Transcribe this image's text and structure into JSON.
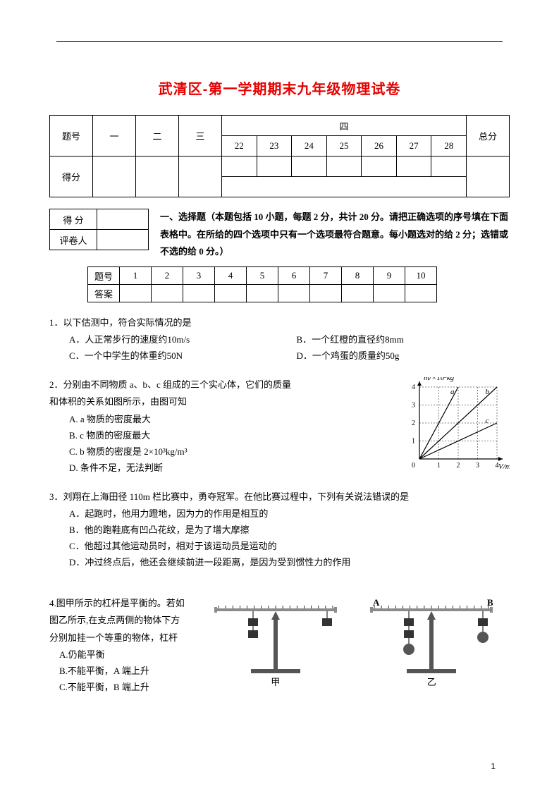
{
  "title": "武清区-第一学期期末九年级物理试卷",
  "page_number": "1",
  "score_table": {
    "row1_label": "题号",
    "row1_cells": [
      "一",
      "二",
      "三",
      "四",
      "总分"
    ],
    "row2_label": "得分",
    "sub_cells": [
      "22",
      "23",
      "24",
      "25",
      "26",
      "27",
      "28"
    ]
  },
  "mini_table": {
    "r1": "得 分",
    "r2": "评卷人"
  },
  "section1_text": "一、选择题（本题包括 10 小题，每题 2 分，共计 20 分。请把正确选项的序号填在下面表格中。在所给的四个选项中只有一个选项最符合题意。每小题选对的给 2 分；选错或不选的给 0 分。）",
  "answer_table": {
    "label_q": "题号",
    "label_a": "答案",
    "nums": [
      "1",
      "2",
      "3",
      "4",
      "5",
      "6",
      "7",
      "8",
      "9",
      "10"
    ]
  },
  "q1": {
    "stem": "1．以下估测中，符合实际情况的是",
    "A": "A．人正常步行的速度约10m/s",
    "B": "B．一个红橙的直径约8mm",
    "C": "C．一个中学生的体重约50N",
    "D": "D．一个鸡蛋的质量约50g"
  },
  "q2": {
    "stem1": "2．分别由不同物质 a、b、c 组成的三个实心体，它们的质量",
    "stem2": "和体积的关系如图所示，由图可知",
    "A": "A. a 物质的密度最大",
    "B": "B. c 物质的密度最大",
    "C": "C. b 物质的密度是 2×10³kg/m³",
    "D": "D. 条件不足，无法判断",
    "chart": {
      "type": "line",
      "xlabel": "V/m³",
      "ylabel": "m/×10³kg",
      "xlim": [
        0,
        4
      ],
      "ylim": [
        0,
        4
      ],
      "xtick_step": 1,
      "ytick_step": 1,
      "background_color": "#ffffff",
      "grid_color": "#000000",
      "axis_color": "#000000",
      "label_fontsize": 11,
      "tick_fontsize": 10,
      "line_color": "#000000",
      "line_width": 1.2,
      "series": [
        {
          "name": "a",
          "points": [
            [
              0,
              0
            ],
            [
              2,
              4
            ]
          ]
        },
        {
          "name": "b",
          "points": [
            [
              0,
              0
            ],
            [
              4,
              4
            ]
          ]
        },
        {
          "name": "c",
          "points": [
            [
              0,
              0
            ],
            [
              4,
              2
            ]
          ]
        }
      ],
      "line_labels": {
        "a": {
          "x": 1.6,
          "y": 3.6
        },
        "b": {
          "x": 3.4,
          "y": 3.6
        },
        "c": {
          "x": 3.4,
          "y": 2.0
        }
      }
    }
  },
  "q3": {
    "stem": "3．刘翔在上海田径 110m 栏比赛中，勇夺冠军。在他比赛过程中，下列有关说法错误的是",
    "A": "A．起跑时，他用力蹬地，因为力的作用是相互的",
    "B": "B．他的跑鞋底有凹凸花纹，是为了增大摩擦",
    "C": "C．他超过其他运动员时，相对于该运动员是运动的",
    "D": "D．冲过终点后，他还会继续前进一段距离，是因为受到惯性力的作用"
  },
  "q4": {
    "stem1": "4.图甲所示的杠杆是平衡的。若如",
    "stem2": "图乙所示,在支点两侧的物体下方",
    "stem3": "分别加挂一个等重的物体，杠杆",
    "A": "A.仍能平衡",
    "B": "B.不能平衡，A 端上升",
    "C": "C.不能平衡，B 端上升",
    "fig_labels": {
      "jia": "甲",
      "yi": "乙",
      "A": "A",
      "B": "B"
    },
    "diagram": {
      "beam_color": "#8a8a8a",
      "stand_color": "#555555",
      "weight_color": "#333333",
      "sphere_color": "#555555",
      "tick_color": "#000000"
    }
  }
}
